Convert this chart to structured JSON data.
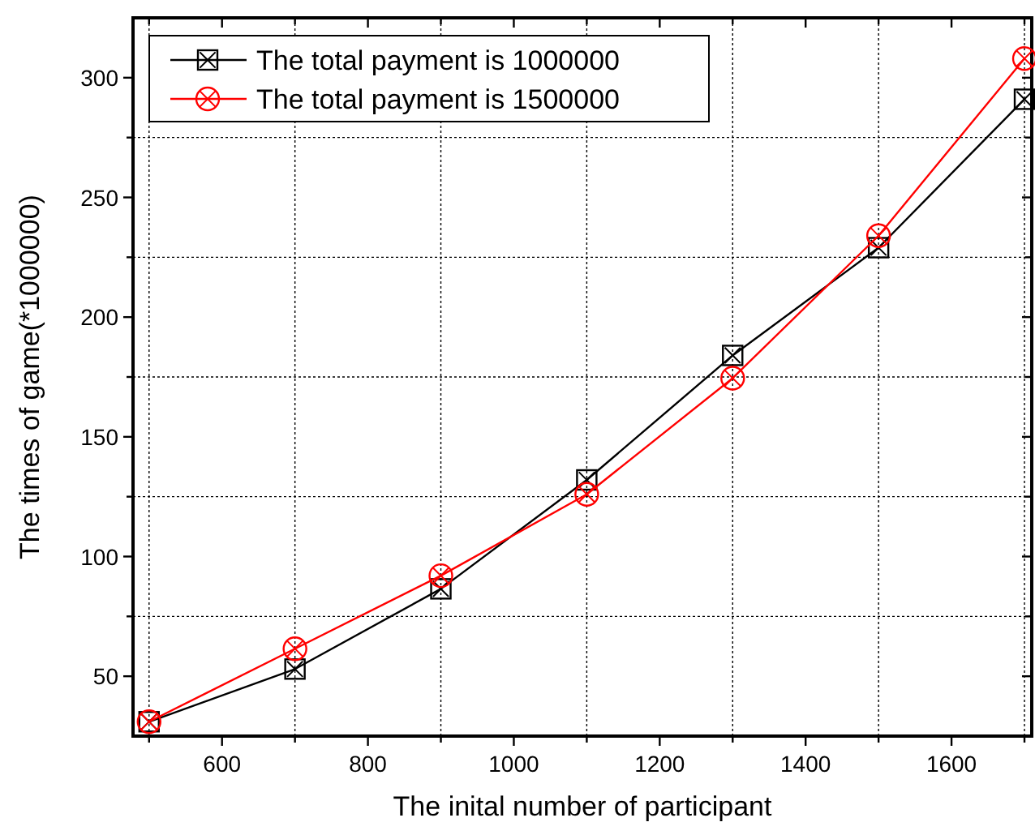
{
  "chart_data": {
    "type": "line",
    "xlabel": "The inital number of participant",
    "ylabel": "The times of game(*1000000)",
    "x": [
      500,
      700,
      900,
      1100,
      1300,
      1500,
      1700
    ],
    "series": [
      {
        "name": "The total payment is 1000000",
        "color": "#000000",
        "marker": "square",
        "values": [
          31,
          53,
          86.5,
          132,
          184,
          229,
          291
        ]
      },
      {
        "name": "The total payment is 1500000",
        "color": "#ff0000",
        "marker": "circle",
        "values": [
          31,
          61.5,
          92,
          126,
          174.5,
          234,
          308
        ]
      }
    ],
    "xlim": [
      478,
      1710
    ],
    "ylim": [
      25,
      325
    ],
    "xticks": [
      {
        "value": 500,
        "label": null
      },
      600,
      {
        "value": 700,
        "label": null
      },
      800,
      {
        "value": 900,
        "label": null
      },
      1000,
      {
        "value": 1100,
        "label": null
      },
      1200,
      {
        "value": 1300,
        "label": null
      },
      1400,
      {
        "value": 1500,
        "label": null
      },
      1600,
      {
        "value": 1700,
        "label": null
      }
    ],
    "yticks": [
      50,
      {
        "value": 75,
        "label": null
      },
      100,
      {
        "value": 125,
        "label": null
      },
      150,
      {
        "value": 175,
        "label": null
      },
      200,
      {
        "value": 225,
        "label": null
      },
      250,
      {
        "value": 275,
        "label": null
      },
      300
    ],
    "grid": true,
    "legend": "top left",
    "line_style": "solid"
  }
}
